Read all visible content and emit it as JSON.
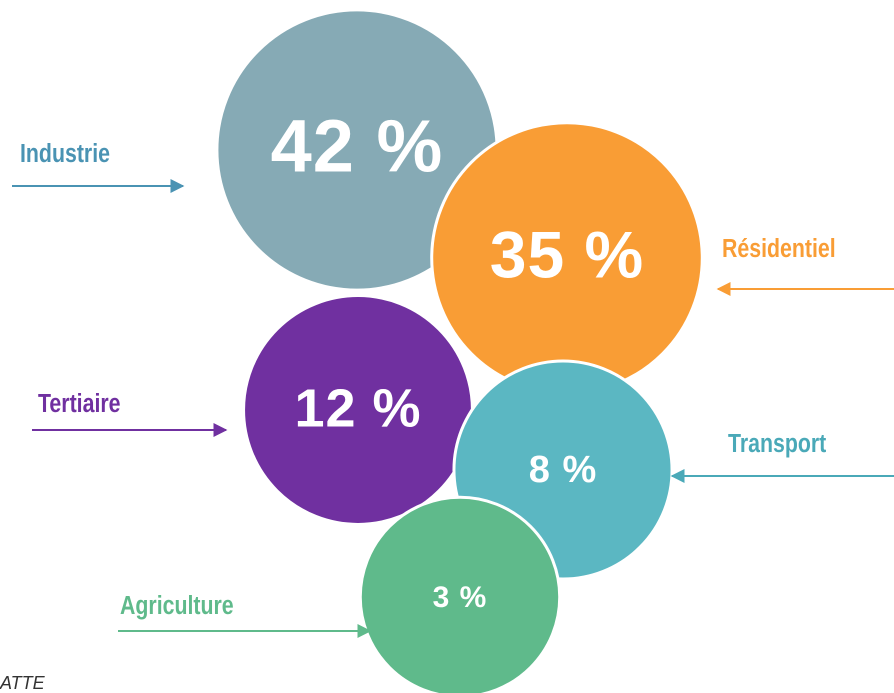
{
  "chart_data": {
    "type": "bubble",
    "categories": [
      "Industrie",
      "Résidentiel",
      "Tertiaire",
      "Transport",
      "Agriculture"
    ],
    "values": [
      42,
      35,
      12,
      8,
      3
    ],
    "value_labels": [
      "42 %",
      "35 %",
      "12 %",
      "8 %",
      "3 %"
    ],
    "colors": [
      "#86aab5",
      "#f99d35",
      "#7030a0",
      "#5bb7c2",
      "#5fba8b"
    ],
    "label_colors": [
      "#4a93b3",
      "#f99d35",
      "#7030a0",
      "#4aa9b8",
      "#5fba8b"
    ],
    "footer": "ATTE"
  }
}
